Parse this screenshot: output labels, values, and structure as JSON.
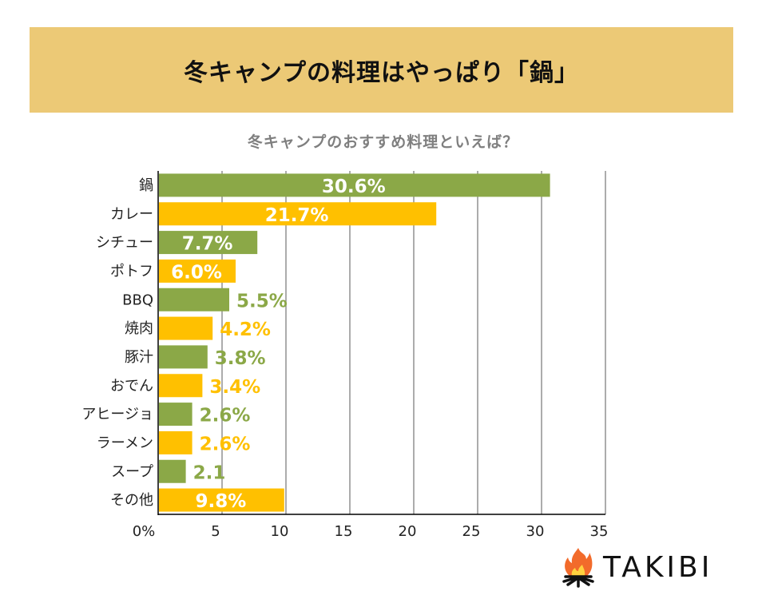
{
  "banner": {
    "title": "冬キャンプの料理はやっぱり「鍋」"
  },
  "colors": {
    "green": "#8ba847",
    "yellow": "#ffc000",
    "banner_bg": "#ecc976",
    "grid": "#808080",
    "axis": "#000000"
  },
  "logo": {
    "text": "TAKIBI",
    "icon": "campfire-icon"
  },
  "chart_data": {
    "type": "bar",
    "orientation": "horizontal",
    "title": "冬キャンプのおすすめ料理といえば？",
    "xlabel": "",
    "ylabel": "",
    "xlim": [
      0,
      35
    ],
    "x_ticks": [
      0,
      5,
      10,
      15,
      20,
      25,
      30,
      35
    ],
    "x_tick_labels": [
      "0%",
      "5",
      "10",
      "15",
      "20",
      "25",
      "30",
      "35"
    ],
    "grid": "vertical",
    "legend": "none",
    "categories": [
      "鍋",
      "カレー",
      "シチュー",
      "ポトフ",
      "BBQ",
      "焼肉",
      "豚汁",
      "おでん",
      "アヒージョ",
      "ラーメン",
      "スープ",
      "その他"
    ],
    "values": [
      30.6,
      21.7,
      7.7,
      6.0,
      5.5,
      4.2,
      3.8,
      3.4,
      2.6,
      2.6,
      2.1,
      9.8
    ],
    "value_labels": [
      "30.6%",
      "21.7%",
      "7.7%",
      "6.0%",
      "5.5%",
      "4.2%",
      "3.8%",
      "3.4%",
      "2.6%",
      "2.6%",
      "2.1",
      "9.8%"
    ],
    "label_inside": [
      true,
      true,
      true,
      true,
      false,
      false,
      false,
      false,
      false,
      false,
      false,
      true
    ],
    "bar_colors": [
      "green",
      "yellow",
      "green",
      "yellow",
      "green",
      "yellow",
      "green",
      "yellow",
      "green",
      "yellow",
      "green",
      "yellow"
    ]
  }
}
